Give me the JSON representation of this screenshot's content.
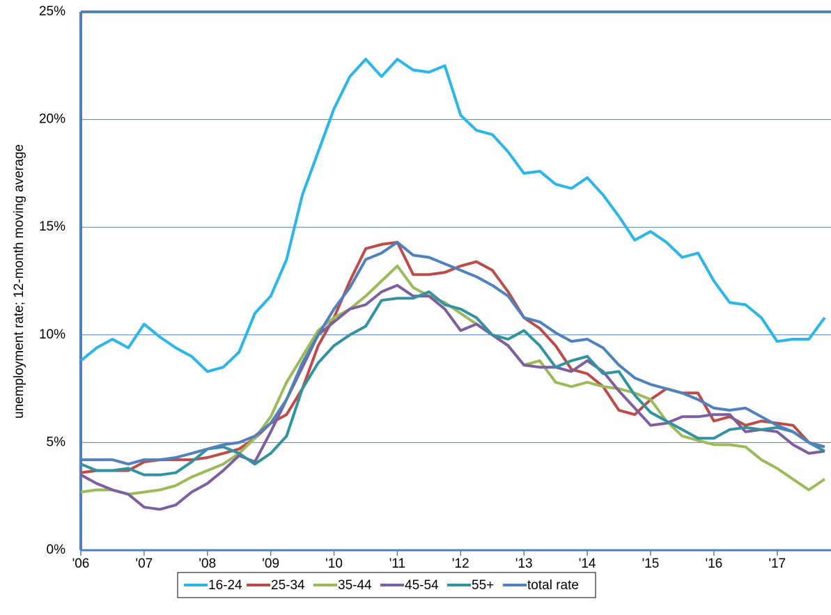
{
  "chart_data": {
    "type": "line",
    "ylabel": "unemployment rate; 12-month moving average",
    "x": [
      2006,
      2006.25,
      2006.5,
      2006.75,
      2007,
      2007.25,
      2007.5,
      2007.75,
      2008,
      2008.25,
      2008.5,
      2008.75,
      2009,
      2009.25,
      2009.5,
      2009.75,
      2010,
      2010.25,
      2010.5,
      2010.75,
      2011,
      2011.25,
      2011.5,
      2011.75,
      2012,
      2012.25,
      2012.5,
      2012.75,
      2013,
      2013.25,
      2013.5,
      2013.75,
      2014,
      2014.25,
      2014.5,
      2014.75,
      2015,
      2015.25,
      2015.5,
      2015.75,
      2016,
      2016.25,
      2016.5,
      2016.75,
      2017,
      2017.25,
      2017.5,
      2017.75
    ],
    "series": [
      {
        "name": "16-24",
        "color": "#29b6e8",
        "values": [
          8.8,
          9.4,
          9.8,
          9.4,
          10.5,
          9.9,
          9.4,
          9.0,
          8.3,
          8.5,
          9.2,
          11.0,
          11.8,
          13.5,
          16.5,
          18.5,
          20.5,
          22.0,
          22.8,
          22.0,
          22.8,
          22.3,
          22.2,
          22.5,
          20.2,
          19.5,
          19.3,
          18.5,
          17.5,
          17.6,
          17.0,
          16.8,
          17.3,
          16.5,
          15.5,
          14.4,
          14.8,
          14.3,
          13.6,
          13.8,
          12.5,
          11.5,
          11.4,
          10.8,
          9.7,
          9.8,
          9.8,
          10.8
        ]
      },
      {
        "name": "25-34",
        "color": "#be4b48",
        "values": [
          3.6,
          3.7,
          3.7,
          3.7,
          4.1,
          4.2,
          4.2,
          4.2,
          4.3,
          4.5,
          4.7,
          5.2,
          5.9,
          6.3,
          7.5,
          9.5,
          10.8,
          12.5,
          14.0,
          14.2,
          14.3,
          12.8,
          12.8,
          12.9,
          13.2,
          13.4,
          13.0,
          12.0,
          10.8,
          10.3,
          9.5,
          8.4,
          8.2,
          7.6,
          6.5,
          6.3,
          7.0,
          7.5,
          7.3,
          7.3,
          6.0,
          6.2,
          5.8,
          6.0,
          5.9,
          5.8,
          5.0,
          4.8
        ]
      },
      {
        "name": "35-44",
        "color": "#9bbb59",
        "values": [
          2.7,
          2.8,
          2.8,
          2.6,
          2.7,
          2.8,
          3.0,
          3.4,
          3.7,
          4.0,
          4.5,
          5.2,
          6.2,
          7.8,
          9.0,
          10.2,
          10.8,
          11.2,
          11.8,
          12.5,
          13.2,
          12.2,
          11.8,
          11.5,
          11.0,
          10.5,
          10.0,
          9.5,
          8.6,
          8.8,
          7.8,
          7.6,
          7.8,
          7.6,
          7.5,
          7.3,
          7.0,
          6.0,
          5.3,
          5.1,
          4.9,
          4.9,
          4.8,
          4.2,
          3.8,
          3.3,
          2.8,
          3.3
        ]
      },
      {
        "name": "45-54",
        "color": "#7d5f9f",
        "values": [
          3.5,
          3.1,
          2.8,
          2.6,
          2.0,
          1.9,
          2.1,
          2.7,
          3.1,
          3.7,
          4.4,
          4.1,
          5.5,
          7.0,
          8.5,
          10.0,
          10.6,
          11.2,
          11.4,
          12.0,
          12.3,
          11.8,
          11.8,
          11.2,
          10.2,
          10.5,
          10.0,
          9.5,
          8.6,
          8.5,
          8.5,
          8.3,
          8.8,
          8.3,
          7.4,
          6.6,
          5.8,
          5.9,
          6.2,
          6.2,
          6.3,
          6.3,
          5.5,
          5.6,
          5.5,
          4.9,
          4.5,
          4.6
        ]
      },
      {
        "name": "55+",
        "color": "#31939f",
        "values": [
          4.0,
          3.7,
          3.7,
          3.8,
          3.5,
          3.5,
          3.6,
          4.1,
          4.7,
          4.8,
          4.5,
          4.0,
          4.5,
          5.3,
          7.5,
          8.7,
          9.5,
          10.0,
          10.4,
          11.6,
          11.7,
          11.7,
          12.0,
          11.4,
          11.2,
          10.8,
          10.0,
          9.8,
          10.2,
          9.5,
          8.5,
          8.8,
          9.0,
          8.2,
          8.3,
          7.2,
          6.4,
          6.0,
          5.6,
          5.2,
          5.2,
          5.6,
          5.7,
          5.6,
          5.7,
          5.5,
          5.0,
          4.6
        ]
      },
      {
        "name": "total rate",
        "color": "#4f81bd",
        "values": [
          4.2,
          4.2,
          4.2,
          4.0,
          4.2,
          4.2,
          4.3,
          4.5,
          4.7,
          4.9,
          5.0,
          5.3,
          5.9,
          7.0,
          8.7,
          10.0,
          11.2,
          12.2,
          13.5,
          13.8,
          14.3,
          13.7,
          13.6,
          13.3,
          13.0,
          12.7,
          12.3,
          11.8,
          10.8,
          10.6,
          10.1,
          9.7,
          9.8,
          9.4,
          8.6,
          8.0,
          7.7,
          7.5,
          7.3,
          7.0,
          6.6,
          6.5,
          6.6,
          6.2,
          5.8,
          5.5,
          5.0,
          4.8
        ]
      }
    ],
    "xlim": [
      2006,
      2017.85
    ],
    "xticks": [
      {
        "value": 2006,
        "label": "'06"
      },
      {
        "value": 2007,
        "label": "'07"
      },
      {
        "value": 2008,
        "label": "'08"
      },
      {
        "value": 2009,
        "label": "'09"
      },
      {
        "value": 2010,
        "label": "'10"
      },
      {
        "value": 2011,
        "label": "'11"
      },
      {
        "value": 2012,
        "label": "'12"
      },
      {
        "value": 2013,
        "label": "'13"
      },
      {
        "value": 2014,
        "label": "'14"
      },
      {
        "value": 2015,
        "label": "'15"
      },
      {
        "value": 2016,
        "label": "'16"
      },
      {
        "value": 2017,
        "label": "'17"
      }
    ],
    "ylim": [
      0,
      25
    ],
    "yticks": [
      {
        "value": 0,
        "label": "0%"
      },
      {
        "value": 5,
        "label": "5%"
      },
      {
        "value": 10,
        "label": "10%"
      },
      {
        "value": 15,
        "label": "15%"
      },
      {
        "value": 20,
        "label": "20%"
      },
      {
        "value": 25,
        "label": "25%"
      }
    ],
    "grid": true,
    "legend": "bottom"
  }
}
